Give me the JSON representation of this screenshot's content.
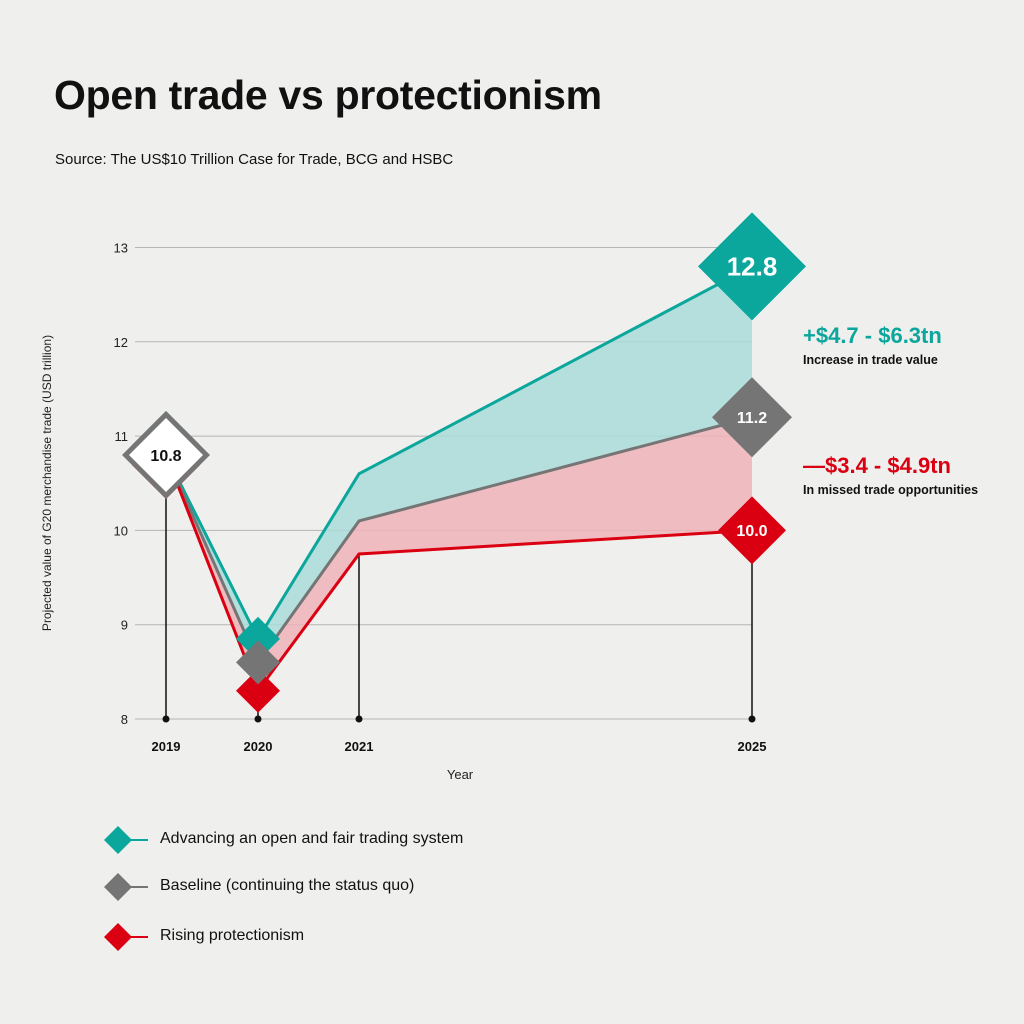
{
  "title": "Open trade vs protectionism",
  "source": "Source: The US$10 Trillion Case for Trade, BCG and HSBC",
  "annotations": [
    {
      "value": "+$4.7 - $6.3tn",
      "label": "Increase in trade value",
      "color": "#0ba69c"
    },
    {
      "value": "—$3.4 - $4.9tn",
      "label": "In missed trade opportunities",
      "color": "#db0011"
    }
  ],
  "chart_data": {
    "type": "line",
    "title": "Open trade vs protectionism",
    "xlabel": "Year",
    "ylabel": "Projected value of G20 merchandise trade (USD trillion)",
    "x": [
      "2019",
      "2020",
      "2021",
      "2025"
    ],
    "ylim": [
      8,
      13
    ],
    "yticks": [
      "8",
      "9",
      "10",
      "11",
      "12",
      "13"
    ],
    "grid": true,
    "legend_position": "bottom-left",
    "series": [
      {
        "name": "Advancing an open and fair trading system",
        "color": "#0ba69c",
        "values": [
          10.8,
          8.85,
          10.6,
          12.8
        ]
      },
      {
        "name": "Baseline (continuing the status quo)",
        "color": "#757575",
        "values": [
          10.8,
          8.6,
          10.1,
          11.2
        ]
      },
      {
        "name": "Rising protectionism",
        "color": "#db0011",
        "values": [
          10.8,
          8.3,
          9.75,
          10.0
        ]
      }
    ],
    "data_labels": [
      {
        "x": "2019",
        "text": "10.8"
      },
      {
        "x": "2025",
        "series": 0,
        "text": "12.8"
      },
      {
        "x": "2025",
        "series": 1,
        "text": "11.2"
      },
      {
        "x": "2025",
        "series": 2,
        "text": "10.0"
      }
    ],
    "fills": [
      {
        "between": [
          0,
          1
        ],
        "color": "#a9dcd8"
      },
      {
        "between": [
          1,
          2
        ],
        "color": "#efb3b8"
      }
    ]
  }
}
